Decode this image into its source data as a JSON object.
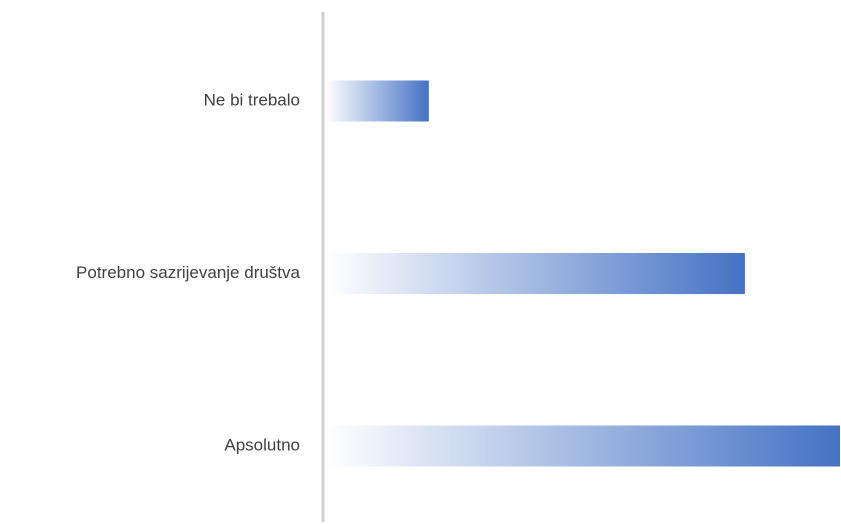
{
  "chart_data": {
    "type": "hbar",
    "categories": [
      "Ne bi trebalo",
      "Potrebno sazrijevanje društva",
      "Apsolutno"
    ],
    "values": [
      20,
      81.5,
      100
    ],
    "color": "#4472c4",
    "xlim": [
      0,
      100
    ]
  }
}
